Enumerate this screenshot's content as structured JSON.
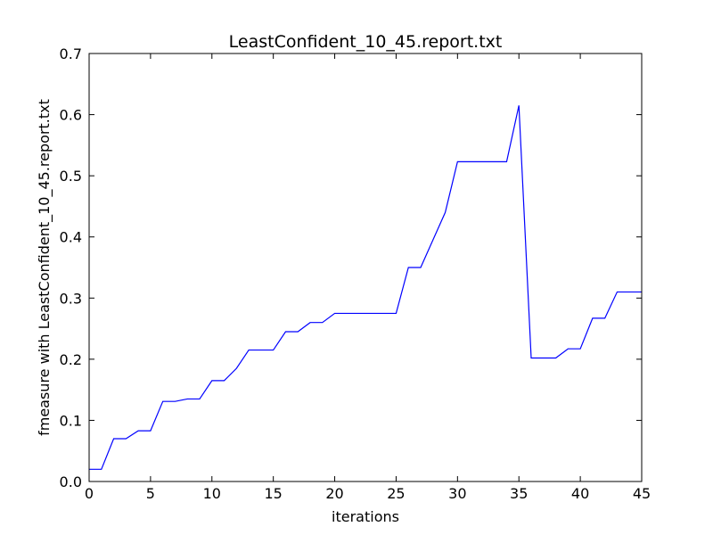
{
  "chart_data": {
    "type": "line",
    "title": "LeastConfident_10_45.report.txt",
    "xlabel": "iterations",
    "ylabel": "fmeasure with LeastConfident_10_45.report.txt",
    "xlim": [
      0,
      45
    ],
    "ylim": [
      0,
      0.7
    ],
    "xticks": [
      0,
      5,
      10,
      15,
      20,
      25,
      30,
      35,
      40,
      45
    ],
    "xtick_labels": [
      "0",
      "5",
      "10",
      "15",
      "20",
      "25",
      "30",
      "35",
      "40",
      "45"
    ],
    "yticks": [
      0,
      0.1,
      0.2,
      0.3,
      0.4,
      0.5,
      0.6,
      0.7
    ],
    "ytick_labels": [
      "0.0",
      "0.1",
      "0.2",
      "0.3",
      "0.4",
      "0.5",
      "0.6",
      "0.7"
    ],
    "grid": false,
    "line_color": "#0000ff",
    "series": [
      {
        "x": [
          0,
          1,
          2,
          3,
          4,
          5,
          6,
          7,
          8,
          9,
          10,
          11,
          12,
          13,
          14,
          15,
          16,
          17,
          18,
          19,
          20,
          21,
          22,
          23,
          24,
          25,
          26,
          27,
          28,
          29,
          30,
          31,
          32,
          33,
          34,
          35,
          36,
          37,
          38,
          39,
          40,
          41,
          42,
          43,
          44,
          45
        ],
        "values": [
          0.02,
          0.02,
          0.07,
          0.07,
          0.083,
          0.083,
          0.131,
          0.131,
          0.135,
          0.135,
          0.165,
          0.165,
          0.185,
          0.215,
          0.215,
          0.215,
          0.245,
          0.245,
          0.26,
          0.26,
          0.275,
          0.275,
          0.275,
          0.275,
          0.275,
          0.275,
          0.35,
          0.35,
          0.395,
          0.44,
          0.523,
          0.523,
          0.523,
          0.523,
          0.523,
          0.615,
          0.202,
          0.202,
          0.202,
          0.217,
          0.217,
          0.267,
          0.267,
          0.31,
          0.31,
          0.31
        ]
      }
    ]
  }
}
